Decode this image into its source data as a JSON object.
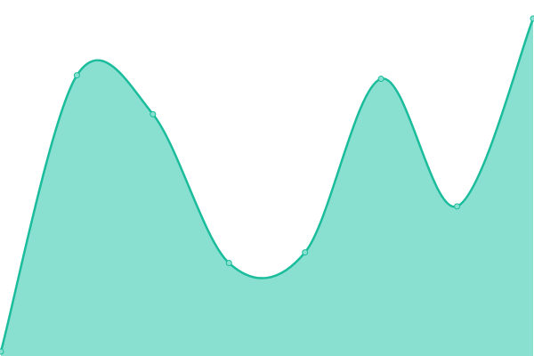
{
  "chart_data": {
    "type": "area",
    "x": [
      0,
      1,
      2,
      3,
      4,
      5,
      6,
      7
    ],
    "values": [
      1,
      79,
      68,
      26,
      29,
      78,
      42,
      95
    ],
    "xlim": [
      0,
      7
    ],
    "ylim": [
      0,
      100
    ],
    "color": "#1abc9c",
    "fill": "#8ae0d0"
  }
}
